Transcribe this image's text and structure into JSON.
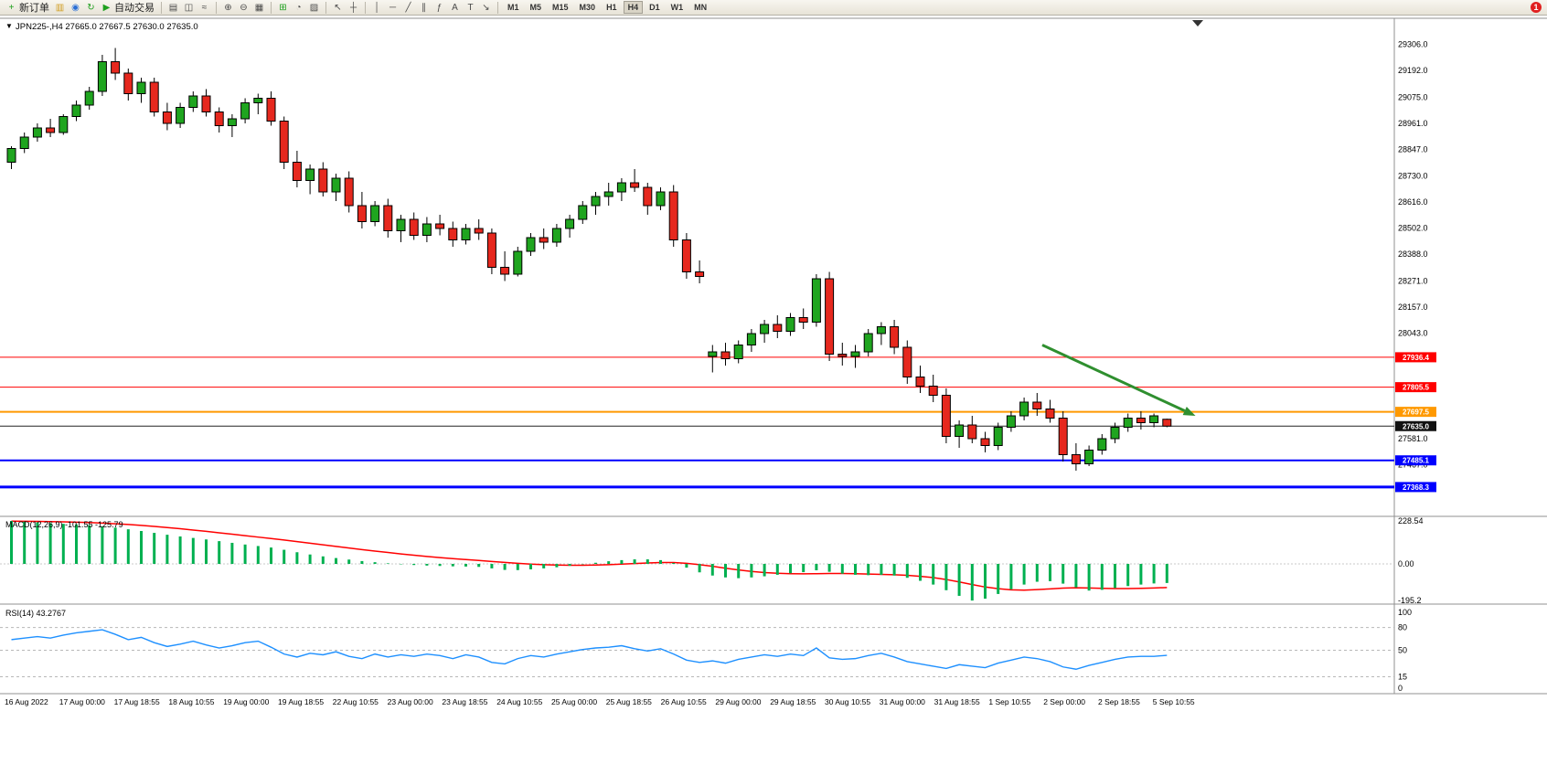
{
  "toolbar": {
    "left_buttons": [
      {
        "name": "new-order-button",
        "glyph": "+",
        "color": "#1fa01f",
        "label": "新订单"
      },
      {
        "name": "chart-window-icon",
        "glyph": "▥",
        "color": "#d09c1e",
        "label": ""
      },
      {
        "name": "community-icon",
        "glyph": "◉",
        "color": "#2a6fd6",
        "label": ""
      },
      {
        "name": "refresh-icon",
        "glyph": "↻",
        "color": "#1fa01f",
        "label": ""
      },
      {
        "name": "autotrading-button",
        "glyph": "▶",
        "color": "#1fa01f",
        "label": "自动交易"
      }
    ],
    "tool_groups": [
      [
        {
          "name": "bar-chart-icon",
          "glyph": "▤",
          "color": "#4a4a4a"
        },
        {
          "name": "candlestick-chart-icon",
          "glyph": "◫",
          "color": "#4a4a4a"
        },
        {
          "name": "line-chart-icon",
          "glyph": "≈",
          "color": "#4a4a4a"
        }
      ],
      [
        {
          "name": "zoom-in-icon",
          "glyph": "⊕",
          "color": "#4a4a4a"
        },
        {
          "name": "zoom-out-icon",
          "glyph": "⊖",
          "color": "#4a4a4a"
        },
        {
          "name": "tile-windows-icon",
          "glyph": "▦",
          "color": "#4a4a4a"
        }
      ],
      [
        {
          "name": "indicators-icon",
          "glyph": "⊞",
          "color": "#1fa01f"
        },
        {
          "name": "periods-icon",
          "glyph": "◔",
          "color": "#4a4a4a"
        },
        {
          "name": "templates-icon",
          "glyph": "▨",
          "color": "#4a4a4a"
        }
      ],
      [
        {
          "name": "cursor-icon",
          "glyph": "↖",
          "color": "#4a4a4a"
        },
        {
          "name": "crosshair-icon",
          "glyph": "┼",
          "color": "#4a4a4a"
        }
      ],
      [
        {
          "name": "vertical-line-icon",
          "glyph": "│",
          "color": "#4a4a4a"
        },
        {
          "name": "horizontal-line-icon",
          "glyph": "─",
          "color": "#4a4a4a"
        },
        {
          "name": "trendline-icon",
          "glyph": "╱",
          "color": "#4a4a4a"
        },
        {
          "name": "channel-icon",
          "glyph": "∥",
          "color": "#4a4a4a"
        },
        {
          "name": "fibonacci-icon",
          "glyph": "ƒ",
          "color": "#4a4a4a"
        },
        {
          "name": "text-icon",
          "glyph": "A",
          "color": "#4a4a4a"
        },
        {
          "name": "label-icon",
          "glyph": "T",
          "color": "#4a4a4a"
        },
        {
          "name": "arrows-icon",
          "glyph": "↘",
          "color": "#4a4a4a"
        }
      ]
    ],
    "timeframes": [
      "M1",
      "M5",
      "M15",
      "M30",
      "H1",
      "H4",
      "D1",
      "W1",
      "MN"
    ],
    "active_timeframe": "H4",
    "notification_badge": "1"
  },
  "chart": {
    "menu_arrow": "▼",
    "title": "JPN225-,H4 27665.0 27667.5 27630.0 27635.0",
    "symbol": "JPN225-",
    "period": "H4",
    "open": "27665.0",
    "high": "27667.5",
    "low": "27630.0",
    "close": "27635.0"
  },
  "chart_data": {
    "type": "candlestick",
    "symbol": "JPN225-",
    "timeframe": "H4",
    "price_range": [
      27240,
      29420
    ],
    "style": {
      "bull": "#1fa51f",
      "bear": "#e6281e",
      "wick": "#000000"
    },
    "candles": [
      [
        28790,
        28860,
        28760,
        28850
      ],
      [
        28850,
        28920,
        28830,
        28900
      ],
      [
        28900,
        28960,
        28880,
        28940
      ],
      [
        28940,
        28980,
        28900,
        28920
      ],
      [
        28920,
        29000,
        28910,
        28990
      ],
      [
        28990,
        29060,
        28970,
        29040
      ],
      [
        29040,
        29120,
        29020,
        29100
      ],
      [
        29100,
        29260,
        29080,
        29230
      ],
      [
        29230,
        29290,
        29150,
        29180
      ],
      [
        29180,
        29200,
        29060,
        29090
      ],
      [
        29090,
        29160,
        29050,
        29140
      ],
      [
        29140,
        29160,
        28990,
        29010
      ],
      [
        29010,
        29050,
        28930,
        28960
      ],
      [
        28960,
        29050,
        28940,
        29030
      ],
      [
        29030,
        29100,
        29010,
        29080
      ],
      [
        29080,
        29110,
        28990,
        29010
      ],
      [
        29010,
        29030,
        28920,
        28950
      ],
      [
        28950,
        29000,
        28900,
        28980
      ],
      [
        28980,
        29070,
        28960,
        29050
      ],
      [
        29050,
        29090,
        29000,
        29070
      ],
      [
        29070,
        29100,
        28950,
        28970
      ],
      [
        28970,
        28990,
        28760,
        28790
      ],
      [
        28790,
        28840,
        28680,
        28710
      ],
      [
        28710,
        28780,
        28650,
        28760
      ],
      [
        28760,
        28790,
        28640,
        28660
      ],
      [
        28660,
        28740,
        28620,
        28720
      ],
      [
        28720,
        28750,
        28570,
        28600
      ],
      [
        28600,
        28660,
        28500,
        28530
      ],
      [
        28530,
        28620,
        28510,
        28600
      ],
      [
        28600,
        28630,
        28460,
        28490
      ],
      [
        28490,
        28560,
        28440,
        28540
      ],
      [
        28540,
        28570,
        28450,
        28470
      ],
      [
        28470,
        28550,
        28440,
        28520
      ],
      [
        28520,
        28560,
        28470,
        28500
      ],
      [
        28500,
        28530,
        28420,
        28450
      ],
      [
        28450,
        28520,
        28430,
        28500
      ],
      [
        28500,
        28540,
        28450,
        28480
      ],
      [
        28480,
        28500,
        28300,
        28330
      ],
      [
        28330,
        28400,
        28270,
        28300
      ],
      [
        28300,
        28420,
        28290,
        28400
      ],
      [
        28400,
        28480,
        28380,
        28460
      ],
      [
        28460,
        28500,
        28410,
        28440
      ],
      [
        28440,
        28520,
        28420,
        28500
      ],
      [
        28500,
        28560,
        28460,
        28540
      ],
      [
        28540,
        28620,
        28520,
        28600
      ],
      [
        28600,
        28660,
        28560,
        28640
      ],
      [
        28640,
        28700,
        28600,
        28660
      ],
      [
        28660,
        28720,
        28620,
        28700
      ],
      [
        28700,
        28760,
        28660,
        28680
      ],
      [
        28680,
        28700,
        28560,
        28600
      ],
      [
        28600,
        28680,
        28580,
        28660
      ],
      [
        28660,
        28690,
        28420,
        28450
      ],
      [
        28450,
        28480,
        28280,
        28310
      ],
      [
        28310,
        28360,
        28260,
        28290
      ],
      [
        27940,
        27990,
        27870,
        27960
      ],
      [
        27960,
        28000,
        27900,
        27930
      ],
      [
        27930,
        28010,
        27910,
        27990
      ],
      [
        27990,
        28060,
        27960,
        28040
      ],
      [
        28040,
        28100,
        28000,
        28080
      ],
      [
        28080,
        28120,
        28020,
        28050
      ],
      [
        28050,
        28130,
        28030,
        28110
      ],
      [
        28110,
        28150,
        28060,
        28090
      ],
      [
        28090,
        28300,
        28070,
        28280
      ],
      [
        28280,
        28310,
        27920,
        27950
      ],
      [
        27950,
        28000,
        27900,
        27940
      ],
      [
        27940,
        27990,
        27890,
        27960
      ],
      [
        27960,
        28060,
        27940,
        28040
      ],
      [
        28040,
        28090,
        27990,
        28070
      ],
      [
        28070,
        28100,
        27950,
        27980
      ],
      [
        27980,
        28010,
        27820,
        27850
      ],
      [
        27850,
        27900,
        27780,
        27810
      ],
      [
        27810,
        27860,
        27740,
        27770
      ],
      [
        27770,
        27800,
        27560,
        27590
      ],
      [
        27590,
        27660,
        27540,
        27640
      ],
      [
        27640,
        27680,
        27560,
        27580
      ],
      [
        27580,
        27610,
        27520,
        27550
      ],
      [
        27550,
        27650,
        27530,
        27630
      ],
      [
        27630,
        27700,
        27610,
        27680
      ],
      [
        27680,
        27760,
        27660,
        27740
      ],
      [
        27740,
        27780,
        27680,
        27710
      ],
      [
        27710,
        27750,
        27650,
        27670
      ],
      [
        27670,
        27700,
        27480,
        27510
      ],
      [
        27510,
        27560,
        27440,
        27470
      ],
      [
        27470,
        27550,
        27460,
        27530
      ],
      [
        27530,
        27600,
        27510,
        27580
      ],
      [
        27580,
        27650,
        27560,
        27630
      ],
      [
        27630,
        27690,
        27610,
        27670
      ],
      [
        27670,
        27700,
        27620,
        27650
      ],
      [
        27650,
        27690,
        27630,
        27680
      ],
      [
        27665,
        27667.5,
        27630,
        27635
      ]
    ],
    "price_axis_labels": [
      {
        "text": "29306.0",
        "price": 29306.0
      },
      {
        "text": "29192.0",
        "price": 29192.0
      },
      {
        "text": "29075.0",
        "price": 29075.0
      },
      {
        "text": "28961.0",
        "price": 28961.0
      },
      {
        "text": "28847.0",
        "price": 28847.0
      },
      {
        "text": "28730.0",
        "price": 28730.0
      },
      {
        "text": "28616.0",
        "price": 28616.0
      },
      {
        "text": "28502.0",
        "price": 28502.0
      },
      {
        "text": "28388.0",
        "price": 28388.0
      },
      {
        "text": "28271.0",
        "price": 28271.0
      },
      {
        "text": "28157.0",
        "price": 28157.0
      },
      {
        "text": "28043.0",
        "price": 28043.0
      },
      {
        "text": "27581.0",
        "price": 27581.0
      },
      {
        "text": "27467.0",
        "price": 27467.0
      }
    ],
    "hlines": [
      {
        "price": 27936.4,
        "label": "27936.4",
        "color": "#ff0000",
        "width": 1
      },
      {
        "price": 27805.5,
        "label": "27805.5",
        "color": "#ff0000",
        "width": 1
      },
      {
        "price": 27697.5,
        "label": "27697.5",
        "color": "#ff9900",
        "width": 2
      },
      {
        "price": 27485.1,
        "label": "27485.1",
        "color": "#0000ff",
        "width": 2
      },
      {
        "price": 27368.3,
        "label": "27368.3",
        "color": "#0000ff",
        "width": 3
      }
    ],
    "current_price": {
      "price": 27635.0,
      "label": "27635.0",
      "line_color": "#222222",
      "tag_color": "#111111"
    },
    "arrow": {
      "from_index": 79.4,
      "from_price": 27990,
      "to_index": 91.2,
      "to_price": 27680,
      "color": "#2f8f2f",
      "width": 3
    },
    "macd": {
      "label": "MACD(12,26,9) -101.55 -125.79",
      "params": "12,26,9",
      "main_value": -101.55,
      "signal_value": -125.79,
      "histogram_color": "#00b050",
      "signal_color": "#ff0000",
      "scale_labels": [
        {
          "text": "228.54",
          "value": 228.54
        },
        {
          "text": "0.00",
          "value": 0
        },
        {
          "text": "-195.2",
          "value": -195.2
        }
      ],
      "histogram": [
        228.54,
        225,
        221,
        217,
        213,
        210,
        206,
        200,
        193,
        184,
        175,
        165,
        155,
        146,
        138,
        130,
        121,
        112,
        103,
        95,
        87,
        75,
        62,
        50,
        40,
        31,
        23,
        15,
        9,
        3,
        -2,
        -6,
        -9,
        -11,
        -13,
        -14,
        -16,
        -24,
        -32,
        -33,
        -29,
        -24,
        -18,
        -10,
        -2,
        6,
        14,
        20,
        24,
        24,
        20,
        5,
        -20,
        -45,
        -62,
        -72,
        -76,
        -72,
        -66,
        -58,
        -50,
        -44,
        -34,
        -42,
        -52,
        -58,
        -60,
        -58,
        -62,
        -74,
        -90,
        -110,
        -140,
        -170,
        -195,
        -185,
        -160,
        -135,
        -110,
        -95,
        -92,
        -105,
        -125,
        -142,
        -138,
        -128,
        -118,
        -110,
        -104,
        -101.55
      ],
      "signal": [
        227,
        226.5,
        226,
        225,
        223.5,
        222,
        220,
        217,
        213.5,
        209.5,
        205,
        199.5,
        193.5,
        187,
        180,
        173,
        165.5,
        158,
        150,
        142.5,
        135,
        127,
        118.5,
        110,
        101.5,
        93,
        84.5,
        76,
        68,
        60.5,
        53,
        46,
        39.5,
        33.5,
        28,
        23,
        18,
        13,
        8,
        3,
        -1,
        -4,
        -6,
        -7,
        -7,
        -6,
        -4,
        -1,
        2,
        5,
        7,
        7,
        3,
        -4,
        -13,
        -23,
        -32,
        -40,
        -46,
        -50,
        -52,
        -53,
        -52,
        -51,
        -51,
        -52,
        -54,
        -56,
        -58,
        -61,
        -66,
        -73,
        -83,
        -96,
        -110,
        -123,
        -132,
        -138,
        -140,
        -137,
        -133,
        -129,
        -127,
        -128,
        -130,
        -131,
        -131,
        -130,
        -128,
        -125.79
      ]
    },
    "rsi": {
      "label": "RSI(14) 43.2767",
      "value": 43.2767,
      "line_color": "#1e90ff",
      "axis_labels": [
        {
          "text": "100",
          "value": 100
        },
        {
          "text": "80",
          "value": 80
        },
        {
          "text": "50",
          "value": 50
        },
        {
          "text": "15",
          "value": 15
        },
        {
          "text": "0",
          "value": 0
        }
      ],
      "levels": [
        80,
        50,
        15
      ],
      "values": [
        64,
        66,
        68,
        66,
        70,
        73,
        75,
        77,
        71,
        64,
        67,
        60,
        55,
        58,
        62,
        57,
        53,
        56,
        60,
        62,
        54,
        45,
        41,
        46,
        44,
        48,
        42,
        39,
        45,
        41,
        44,
        42,
        45,
        43,
        39,
        44,
        41,
        34,
        32,
        39,
        43,
        41,
        45,
        48,
        51,
        53,
        54,
        56,
        52,
        49,
        52,
        45,
        37,
        34,
        36,
        33,
        38,
        41,
        44,
        42,
        45,
        43,
        53,
        40,
        38,
        39,
        43,
        46,
        41,
        35,
        32,
        29,
        26,
        31,
        29,
        27,
        33,
        37,
        41,
        39,
        35,
        28,
        25,
        30,
        34,
        38,
        41,
        42,
        42,
        43.28
      ]
    },
    "time_labels": [
      "16 Aug 2022",
      "17 Aug 00:00",
      "17 Aug 18:55",
      "18 Aug 10:55",
      "19 Aug 00:00",
      "19 Aug 18:55",
      "22 Aug 10:55",
      "23 Aug 00:00",
      "23 Aug 18:55",
      "24 Aug 10:55",
      "25 Aug 00:00",
      "25 Aug 18:55",
      "26 Aug 10:55",
      "29 Aug 00:00",
      "29 Aug 18:55",
      "30 Aug 10:55",
      "31 Aug 00:00",
      "31 Aug 18:55",
      "1 Sep 10:55",
      "2 Sep 00:00",
      "2 Sep 18:55",
      "5 Sep 10:55"
    ]
  }
}
